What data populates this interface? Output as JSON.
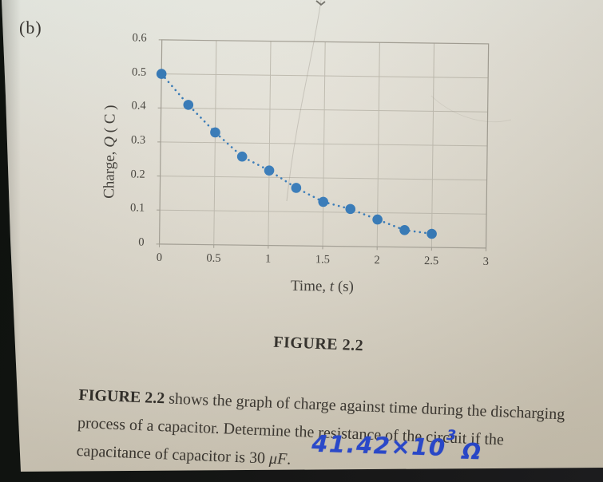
{
  "page": {
    "part_label": "(b)"
  },
  "figure": {
    "caption": "FIGURE 2.2"
  },
  "chart_data": {
    "type": "scatter",
    "title": "",
    "xlabel": "Time, t (s)",
    "ylabel": "Charge, Q ( C )",
    "xlabel_parts": [
      "Time, ",
      "t",
      " (s)"
    ],
    "ylabel_parts": [
      "Charge, ",
      "Q",
      " ( C )"
    ],
    "x": [
      0,
      0.25,
      0.5,
      0.75,
      1.0,
      1.25,
      1.5,
      1.75,
      2.0,
      2.25,
      2.5
    ],
    "y": [
      0.5,
      0.41,
      0.33,
      0.26,
      0.22,
      0.17,
      0.13,
      0.11,
      0.08,
      0.05,
      0.04
    ],
    "xlim": [
      0,
      3
    ],
    "ylim": [
      0,
      0.6
    ],
    "x_tick_labels": [
      "0",
      "0.5",
      "1",
      "1.5",
      "2",
      "2.5",
      "3"
    ],
    "y_tick_labels": [
      "0",
      "0.1",
      "0.2",
      "0.3",
      "0.4",
      "0.5",
      "0.6"
    ],
    "grid": true,
    "legend": "none",
    "line_style": "dotted",
    "marker": "circle"
  },
  "problem": {
    "line1_bold": "FIGURE 2.2",
    "line1_rest": " shows the graph of charge against time during the discharging",
    "line2": "process of a capacitor. Determine the resistance of the circuit if the",
    "line3_prefix": "capacitance of capacitor is 30 ",
    "line3_unit": "μF",
    "line3_suffix": "."
  },
  "handwritten_answer": {
    "mantissa": "41.42×10",
    "exponent": "3",
    "unit": "Ω"
  },
  "colors": {
    "marker_blue": "#2e75b6",
    "ink_blue": "#2647d2",
    "grid": "#bcb8ac",
    "axis": "#a09c91",
    "text": "#38342e",
    "paper": "#dad5c8",
    "backing": "#141412"
  }
}
